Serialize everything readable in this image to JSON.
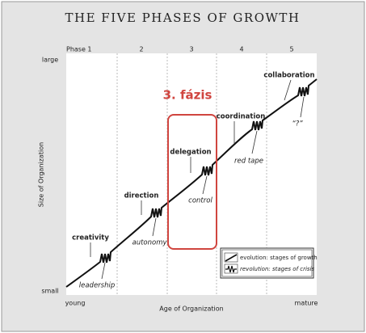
{
  "title": "THE FIVE PHASES OF GROWTH",
  "phases": [
    "Phase 1",
    "2",
    "3",
    "4",
    "5"
  ],
  "y_axis": {
    "label": "Size of Organization",
    "top": "large",
    "bottom": "small"
  },
  "x_axis": {
    "label": "Age of Organization",
    "left": "young",
    "right": "mature"
  },
  "stages": [
    {
      "evolution": "creativity",
      "revolution": "leadership"
    },
    {
      "evolution": "direction",
      "revolution": "autonomy"
    },
    {
      "evolution": "delegation",
      "revolution": "control"
    },
    {
      "evolution": "coordination",
      "revolution": "red tape"
    },
    {
      "evolution": "collaboration",
      "revolution": "“?”"
    }
  ],
  "highlight": "3. fázis",
  "legend": [
    "evolution: stages of growth",
    "revolution: stages of crisis"
  ]
}
